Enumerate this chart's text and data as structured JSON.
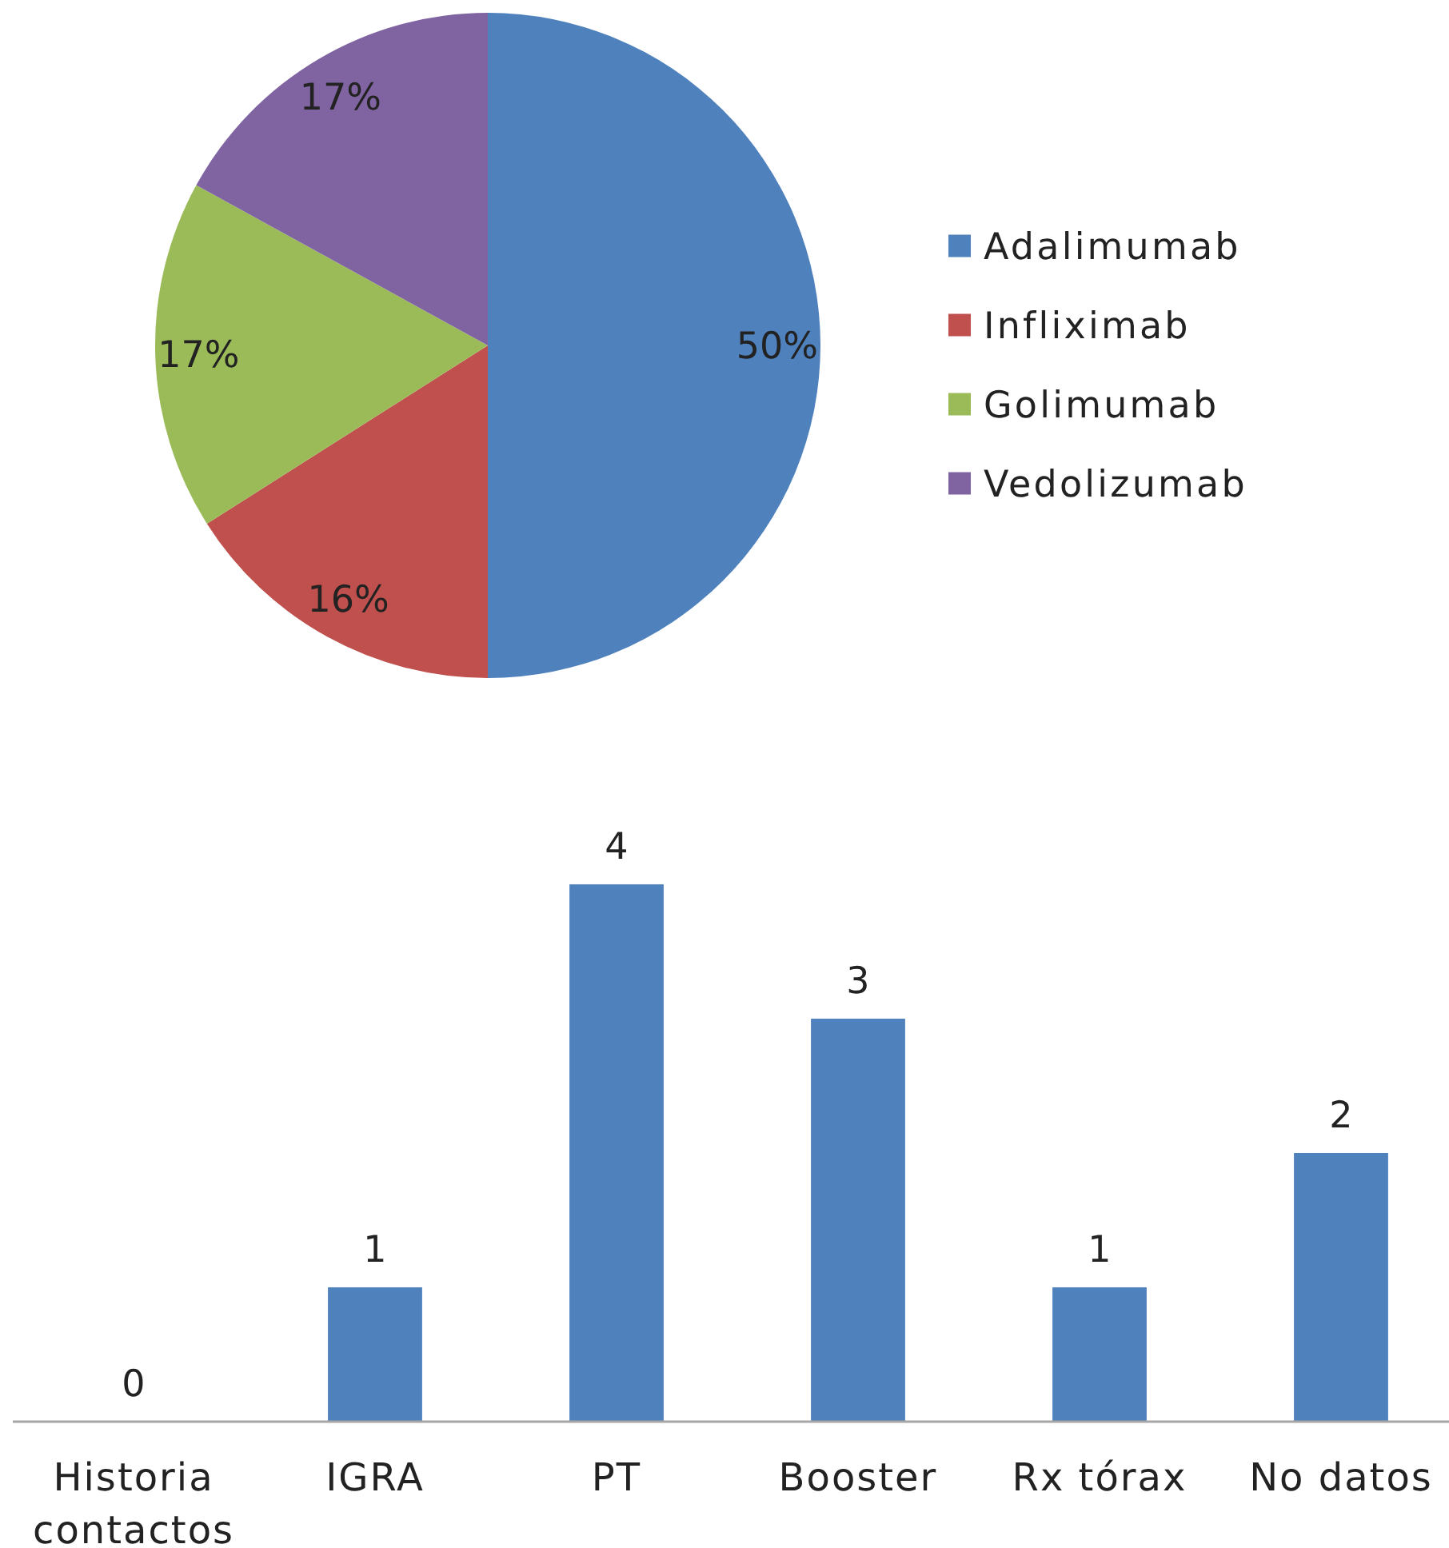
{
  "chart_data": [
    {
      "type": "pie",
      "categories": [
        "Adalimumab",
        "Infliximab",
        "Golimumab",
        "Vedolizumab"
      ],
      "values": [
        50,
        16,
        17,
        17
      ],
      "colors": [
        "#4f81bd",
        "#c0504d",
        "#9bbb59",
        "#8064a2"
      ],
      "value_labels": [
        "50%",
        "16%",
        "17%",
        "17%"
      ],
      "legend": "right"
    },
    {
      "type": "bar",
      "categories": [
        "Historia contactos",
        "IGRA",
        "PT",
        "Booster",
        "Rx tórax",
        "No datos"
      ],
      "values": [
        0,
        1,
        4,
        3,
        1,
        2
      ],
      "color": "#4f81bd",
      "data_labels": true
    }
  ]
}
